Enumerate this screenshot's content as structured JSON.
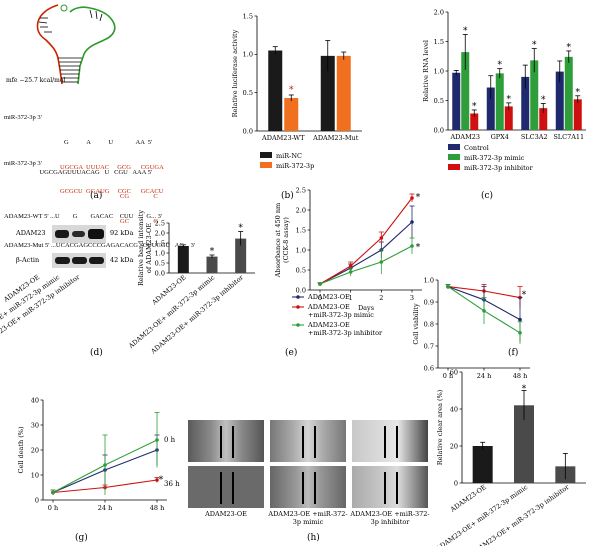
{
  "panels": {
    "a": {
      "label": "(a)",
      "mfe": "mfe −25.7 kcal/mol",
      "wt_mir_line": "miR-372-3p 3'",
      "wt_top_unpaired": "G           A           U              AA  5'",
      "wt_mir_paired": "UGCGA  UUUAC     GCG      CGUGA",
      "wt_tgt_paired": "GCGCU  GGAUG     CGC      GCACU",
      "wt_tgt_line": "ADAM23-WT 5' ...U        G        GACAC    CUU        G... 3'",
      "mut_mir_line": "miR-372-3p 3'",
      "mut_mir_seq": "UGCGAGUUUACAG   U   CGU   AAA 5'",
      "mut_cg": "CG               C",
      "mut_gc": "GC               G",
      "mut_tgt_line": "ADAM23-Mut 5' ...UCACGAGCCCGAGACACG   CUUCGU   AG... 3'"
    },
    "b": {
      "label": "(b)"
    },
    "c": {
      "label": "(c)"
    },
    "d": {
      "label": "(d)",
      "blot_labels": [
        "ADAM23",
        "β-Actin"
      ],
      "kda_labels": [
        "92 kDa",
        "42 kDa"
      ],
      "groups": [
        "ADAM23-OE",
        "ADAM23-OE+ miR-372-3p mimic",
        "ADAM23-OE+ miR-372-3p inhibitor"
      ]
    },
    "e": {
      "label": "(e)"
    },
    "f": {
      "label": "(f)"
    },
    "g": {
      "label": "(g)"
    },
    "h": {
      "label": "(h)",
      "row_labels": [
        "0 h",
        "36 h"
      ],
      "col_labels": [
        "ADAM23-OE",
        "ADAM23-OE +miR-372-3p mimic",
        "ADAM23-OE +miR-372-3p inhibitor"
      ]
    }
  },
  "colors": {
    "black": "#1a1a1a",
    "orange": "#f07020",
    "navy": "#1f2a6e",
    "green": "#2e9e3a",
    "red": "#d01010",
    "gray": "#4a4a4a",
    "rna_red": "#cc2200",
    "rna_green": "#2c9a2c"
  },
  "chart_data": [
    {
      "id": "b",
      "type": "bar",
      "ylabel": "Relative luciferase activity",
      "ylim": [
        0,
        1.5
      ],
      "yticks": [
        "0.0",
        "0.5",
        "1.0",
        "1.5"
      ],
      "categories": [
        "ADAM23-WT",
        "ADAM23-Mut"
      ],
      "series": [
        {
          "name": "miR-NC",
          "values": [
            1.05,
            0.98
          ],
          "errors": [
            0.05,
            0.2
          ]
        },
        {
          "name": "miR-372-3p",
          "values": [
            0.43,
            0.98
          ],
          "errors": [
            0.04,
            0.05
          ]
        }
      ],
      "annotations": [
        "*"
      ]
    },
    {
      "id": "c",
      "type": "bar",
      "ylabel": "Relative RNA level",
      "ylim": [
        0,
        2.0
      ],
      "yticks": [
        "0.0",
        "0.5",
        "1.0",
        "1.5",
        "2.0"
      ],
      "categories": [
        "ADAM23",
        "GPX4",
        "SLC3A2",
        "SLC7A11"
      ],
      "series": [
        {
          "name": "Control",
          "values": [
            0.97,
            0.72,
            0.9,
            0.99
          ],
          "errors": [
            0.04,
            0.2,
            0.2,
            0.18
          ]
        },
        {
          "name": "miR-372-3p mimic",
          "values": [
            1.32,
            0.96,
            1.18,
            1.24
          ],
          "errors": [
            0.3,
            0.08,
            0.2,
            0.1
          ]
        },
        {
          "name": "miR-372-3p inhibitor",
          "values": [
            0.28,
            0.4,
            0.37,
            0.52
          ],
          "errors": [
            0.06,
            0.06,
            0.08,
            0.06
          ]
        }
      ],
      "annotations": [
        "*"
      ]
    },
    {
      "id": "d",
      "type": "bar",
      "ylabel": "Relative band intensity of ADAM23-OE",
      "ylim": [
        0,
        2.5
      ],
      "yticks": [
        "0.0",
        "0.5",
        "1.0",
        "1.5",
        "2.0",
        "2.5"
      ],
      "categories": [
        "ADAM23-OE",
        "ADAM23-OE+ miR-372-3p mimic",
        "ADAM23-OE+ miR-372-3p inhibitor"
      ],
      "values": [
        1.35,
        0.82,
        1.72
      ],
      "errors": [
        0.06,
        0.08,
        0.35
      ],
      "annotations": [
        "*"
      ]
    },
    {
      "id": "e",
      "type": "line",
      "xlabel": "Days",
      "ylabel": "Absorbance at 450 nm (CCK-8 assay)",
      "ylim": [
        0,
        2.5
      ],
      "yticks": [
        "0.0",
        "0.5",
        "1.0",
        "1.5",
        "2.0",
        "2.5"
      ],
      "x": [
        0,
        1,
        2,
        3
      ],
      "series": [
        {
          "name": "ADAM23-OE",
          "values": [
            0.15,
            0.55,
            1.0,
            1.7
          ],
          "errors": [
            0.03,
            0.1,
            0.2,
            0.4
          ]
        },
        {
          "name": "ADAM23-OE +miR-372-3p mimic",
          "values": [
            0.15,
            0.6,
            1.3,
            2.3
          ],
          "errors": [
            0.03,
            0.1,
            0.15,
            0.1
          ]
        },
        {
          "name": "ADAM23-OE +miR-372-3p inhibitor",
          "values": [
            0.15,
            0.45,
            0.7,
            1.1
          ],
          "errors": [
            0.03,
            0.1,
            0.3,
            0.2
          ]
        }
      ],
      "annotations": [
        "*"
      ]
    },
    {
      "id": "f",
      "type": "line",
      "ylabel": "Cell viability",
      "ylim": [
        0.6,
        1.0
      ],
      "yticks": [
        "0.6",
        "0.7",
        "0.8",
        "0.9",
        "1.0"
      ],
      "x": [
        "0 h",
        "24 h",
        "48 h"
      ],
      "series": [
        {
          "values": [
            0.97,
            0.95,
            0.92
          ],
          "errors": [
            0.01,
            0.03,
            0.05
          ]
        },
        {
          "values": [
            0.97,
            0.91,
            0.82
          ],
          "errors": [
            0.01,
            0.06,
            0.1
          ]
        },
        {
          "values": [
            0.97,
            0.86,
            0.76
          ],
          "errors": [
            0.01,
            0.06,
            0.05
          ]
        }
      ],
      "annotations": [
        "*"
      ]
    },
    {
      "id": "g",
      "type": "line",
      "ylabel": "Cell death (%)",
      "ylim": [
        0,
        40
      ],
      "yticks": [
        "0",
        "10",
        "20",
        "30",
        "40"
      ],
      "x": [
        "0 h",
        "24 h",
        "48 h"
      ],
      "series": [
        {
          "values": [
            3,
            12,
            20
          ],
          "errors": [
            1,
            6,
            6
          ]
        },
        {
          "values": [
            3,
            5,
            8
          ],
          "errors": [
            1,
            1,
            1
          ]
        },
        {
          "values": [
            3,
            14,
            24
          ],
          "errors": [
            1,
            12,
            11
          ]
        }
      ],
      "annotations": [
        "*"
      ]
    },
    {
      "id": "h",
      "type": "bar",
      "ylabel": "Relative clear area (%)",
      "ylim": [
        0,
        60
      ],
      "yticks": [
        "0",
        "20",
        "40",
        "60"
      ],
      "categories": [
        "ADAM23-OE",
        "ADAM23-OE+ miR-372-3p mimic",
        "ADAM23-OE+ miR-372-3p inhibitor"
      ],
      "values": [
        20,
        42,
        9
      ],
      "errors": [
        2,
        8,
        7
      ],
      "annotations": [
        "*"
      ]
    }
  ]
}
